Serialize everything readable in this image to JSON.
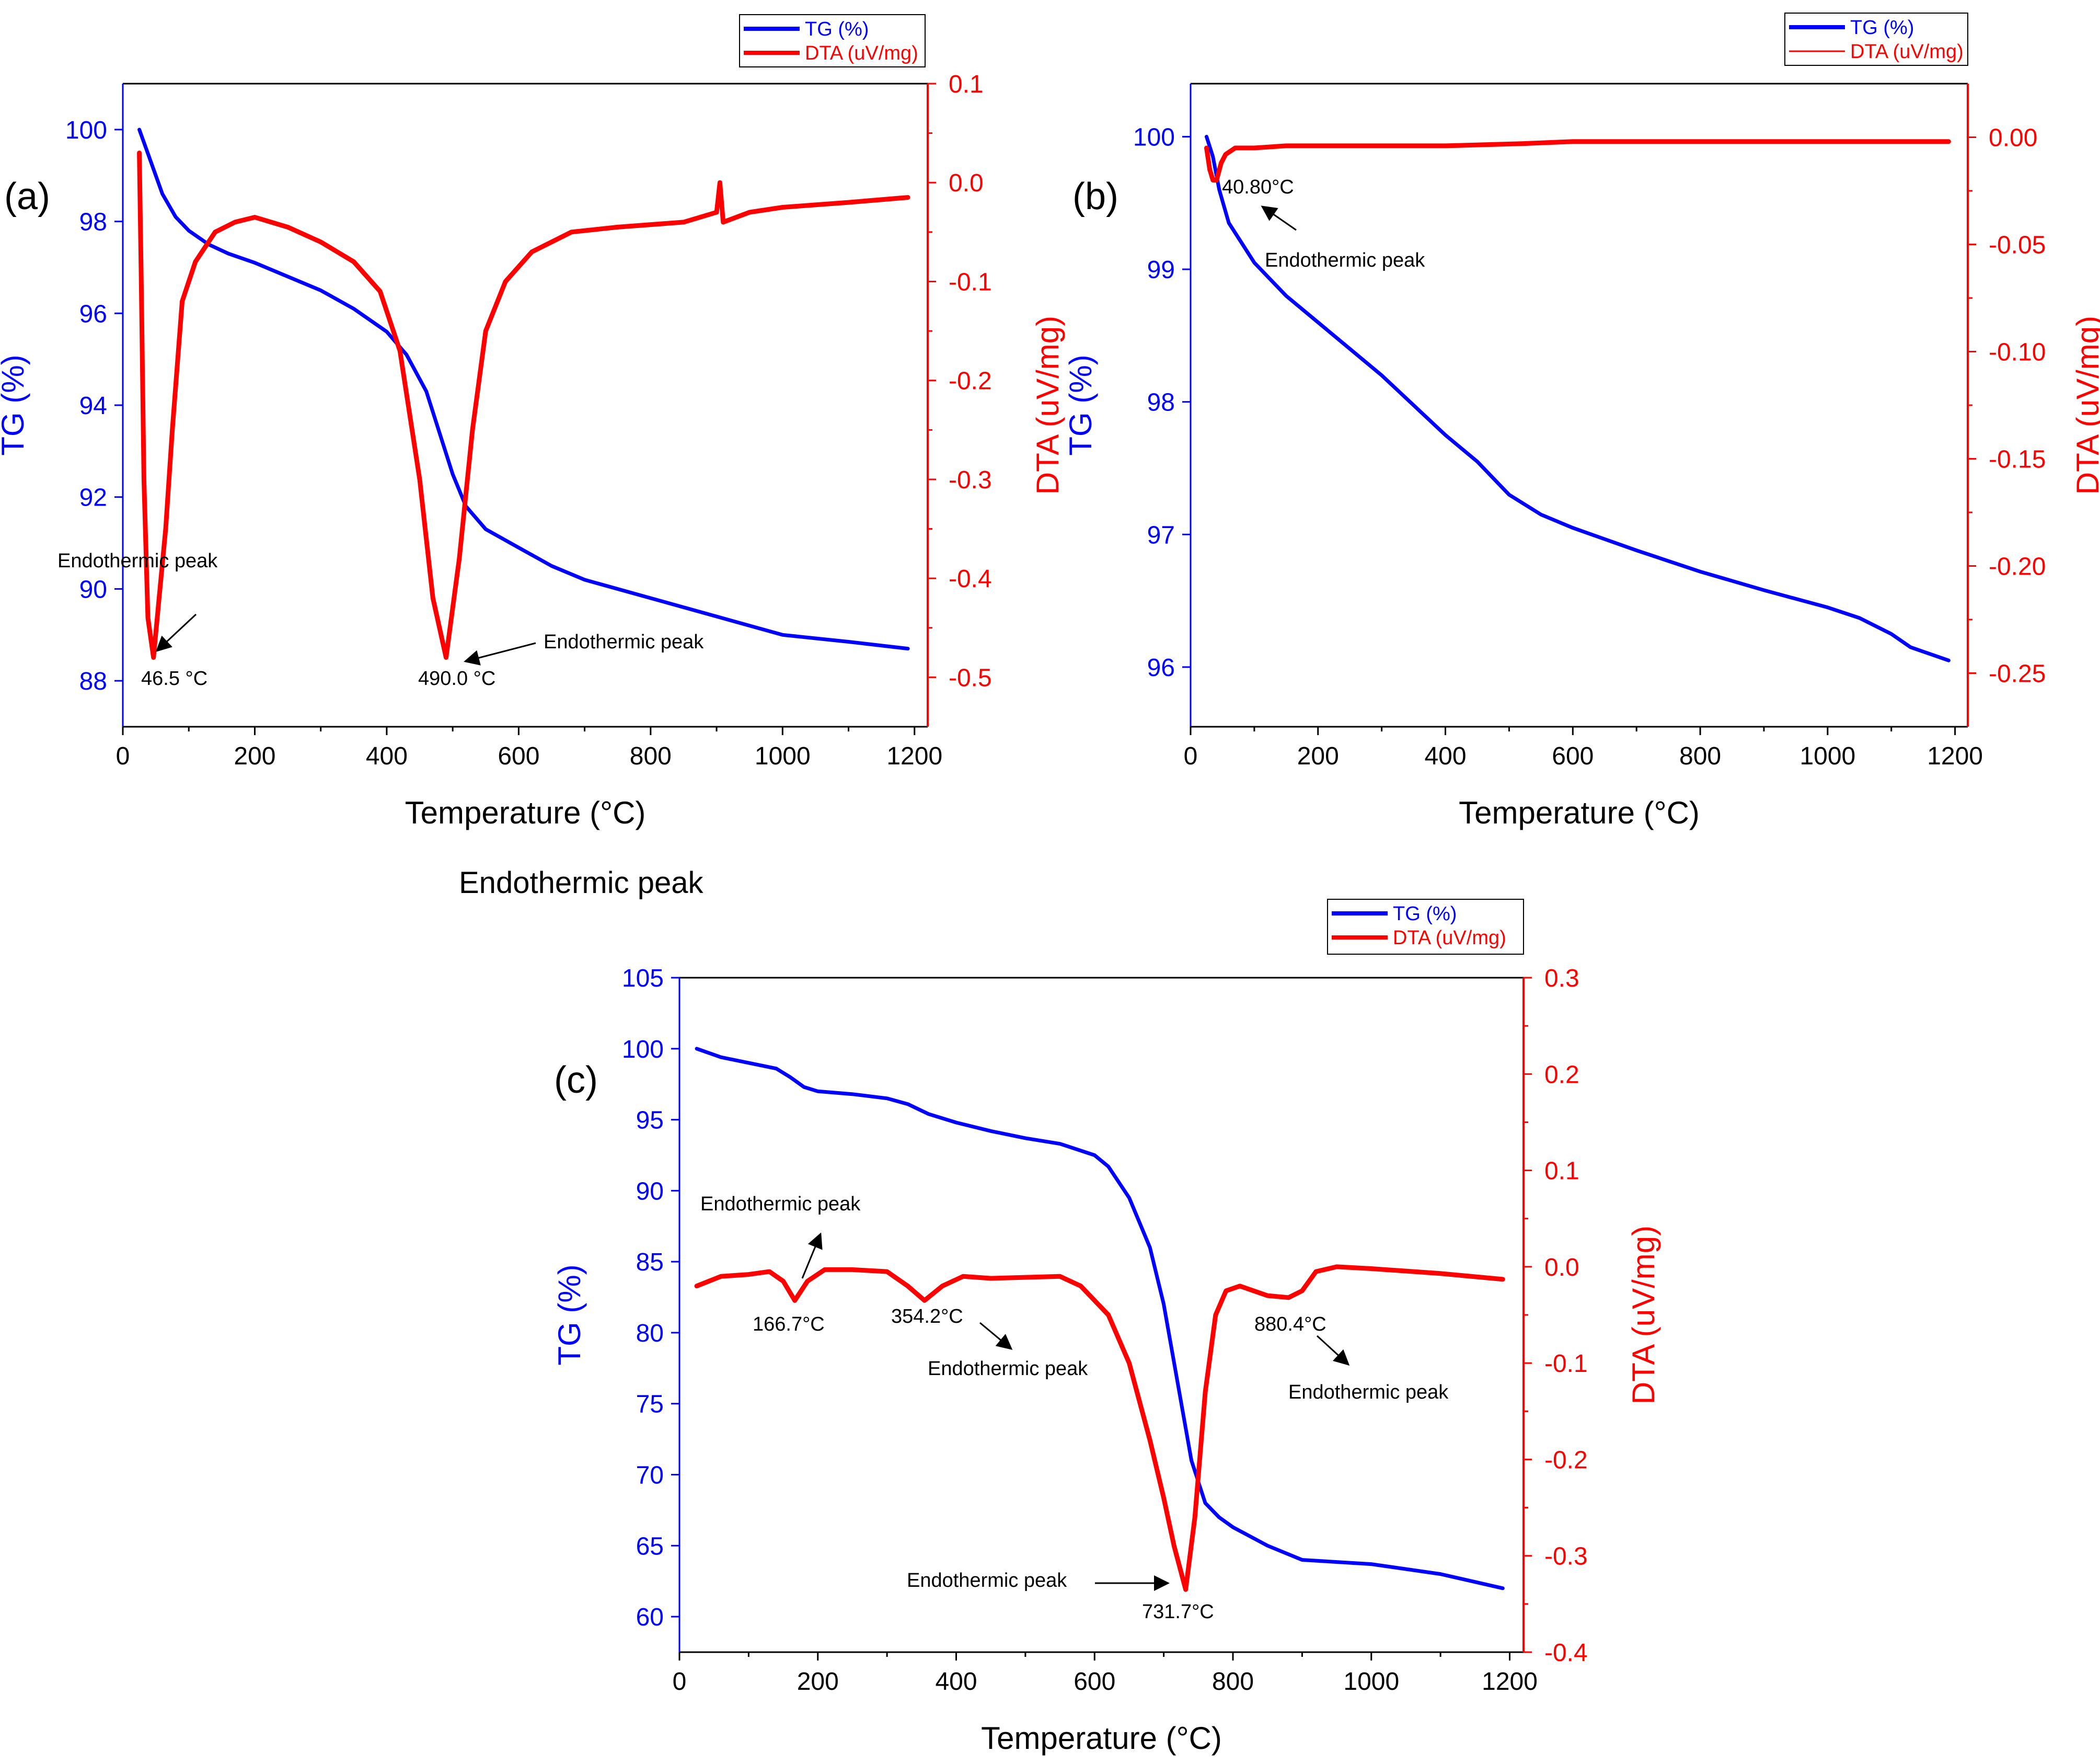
{
  "stray_text": "Endothermic peak",
  "colors": {
    "tg": "#0000ff",
    "dta": "#ff0000",
    "axis": "#000000"
  },
  "chart_data": [
    {
      "panel": "(a)",
      "type": "line",
      "xlabel": "Temperature (°C)",
      "ylabel_left": "TG (%)",
      "ylabel_right": "DTA (uV/mg)",
      "xlim": [
        0,
        1220
      ],
      "x_ticks": [
        0,
        200,
        400,
        600,
        800,
        1000,
        1200
      ],
      "ylim_left": [
        87,
        101
      ],
      "y_ticks_left": [
        88,
        90,
        92,
        94,
        96,
        98,
        100
      ],
      "ylim_right": [
        -0.55,
        0.1
      ],
      "y_ticks_right": [
        -0.5,
        -0.4,
        -0.3,
        -0.2,
        -0.1,
        0.0,
        0.1
      ],
      "legend": [
        "TG (%)",
        "DTA (uV/mg)"
      ],
      "legend_position": "top-right",
      "series": [
        {
          "name": "TG (%)",
          "axis": "left",
          "x": [
            25,
            40,
            60,
            80,
            100,
            130,
            160,
            200,
            250,
            300,
            350,
            400,
            430,
            460,
            480,
            500,
            520,
            550,
            600,
            650,
            700,
            800,
            900,
            1000,
            1100,
            1190
          ],
          "y": [
            100,
            99.4,
            98.6,
            98.1,
            97.8,
            97.5,
            97.3,
            97.1,
            96.8,
            96.5,
            96.1,
            95.6,
            95.1,
            94.3,
            93.4,
            92.5,
            91.8,
            91.3,
            90.9,
            90.5,
            90.2,
            89.8,
            89.4,
            89.0,
            88.85,
            88.7
          ]
        },
        {
          "name": "DTA (uV/mg)",
          "axis": "right",
          "x": [
            25,
            28,
            32,
            38,
            46.5,
            55,
            65,
            75,
            90,
            110,
            140,
            170,
            200,
            250,
            300,
            350,
            390,
            420,
            450,
            470,
            490,
            510,
            530,
            550,
            580,
            620,
            680,
            750,
            850,
            900,
            905,
            910,
            950,
            1000,
            1100,
            1190
          ],
          "y": [
            0.03,
            -0.1,
            -0.3,
            -0.44,
            -0.48,
            -0.42,
            -0.35,
            -0.25,
            -0.12,
            -0.08,
            -0.05,
            -0.04,
            -0.035,
            -0.045,
            -0.06,
            -0.08,
            -0.11,
            -0.17,
            -0.3,
            -0.42,
            -0.48,
            -0.38,
            -0.25,
            -0.15,
            -0.1,
            -0.07,
            -0.05,
            -0.045,
            -0.04,
            -0.03,
            0.0,
            -0.04,
            -0.03,
            -0.025,
            -0.02,
            -0.015
          ]
        }
      ],
      "annotations": [
        {
          "text": "Endothermic peak",
          "at": [
            46.5,
            -0.48
          ]
        },
        {
          "text": "46.5 °C",
          "at": [
            46.5,
            -0.48
          ]
        },
        {
          "text": "Endothermic peak",
          "at": [
            490,
            -0.48
          ]
        },
        {
          "text": "490.0 °C",
          "at": [
            490,
            -0.48
          ]
        }
      ]
    },
    {
      "panel": "(b)",
      "type": "line",
      "xlabel": "Temperature (°C)",
      "ylabel_left": "TG (%)",
      "ylabel_right": "DTA (uV/mg)",
      "xlim": [
        0,
        1220
      ],
      "x_ticks": [
        0,
        200,
        400,
        600,
        800,
        1000,
        1200
      ],
      "ylim_left": [
        95.55,
        100.4
      ],
      "y_ticks_left": [
        96,
        97,
        98,
        99,
        100
      ],
      "ylim_right": [
        -0.275,
        0.025
      ],
      "y_ticks_right": [
        -0.25,
        -0.2,
        -0.15,
        -0.1,
        -0.05,
        0.0
      ],
      "y_ticklabels_right": [
        "-0.25",
        "-0.20",
        "-0.15",
        "-0.10",
        "-0.05",
        "0.00"
      ],
      "legend": [
        "TG (%)",
        "DTA (uV/mg)"
      ],
      "legend_position": "top-right",
      "series": [
        {
          "name": "TG (%)",
          "axis": "left",
          "x": [
            25,
            35,
            45,
            60,
            80,
            100,
            150,
            200,
            300,
            400,
            450,
            500,
            550,
            600,
            700,
            800,
            900,
            1000,
            1050,
            1100,
            1130,
            1190
          ],
          "y": [
            100,
            99.85,
            99.6,
            99.35,
            99.2,
            99.05,
            98.8,
            98.6,
            98.2,
            97.75,
            97.55,
            97.3,
            97.15,
            97.05,
            96.88,
            96.72,
            96.58,
            96.45,
            96.37,
            96.25,
            96.15,
            96.05
          ]
        },
        {
          "name": "DTA (uV/mg)",
          "axis": "right",
          "x": [
            25,
            30,
            35,
            40.8,
            48,
            55,
            70,
            100,
            150,
            250,
            400,
            520,
            600,
            700,
            800,
            900,
            1000,
            1100,
            1190
          ],
          "y": [
            -0.005,
            -0.015,
            -0.02,
            -0.02,
            -0.012,
            -0.008,
            -0.005,
            -0.005,
            -0.004,
            -0.004,
            -0.004,
            -0.003,
            -0.002,
            -0.002,
            -0.002,
            -0.002,
            -0.002,
            -0.002,
            -0.002
          ]
        }
      ],
      "annotations": [
        {
          "text": "40.80°C",
          "at": [
            40.8,
            -0.02
          ]
        },
        {
          "text": "Endothermic peak",
          "at": [
            40.8,
            -0.02
          ]
        }
      ]
    },
    {
      "panel": "(c)",
      "type": "line",
      "xlabel": "Temperature (°C)",
      "ylabel_left": "TG (%)",
      "ylabel_right": "DTA (uV/mg)",
      "xlim": [
        0,
        1220
      ],
      "x_ticks": [
        0,
        200,
        400,
        600,
        800,
        1000,
        1200
      ],
      "ylim_left": [
        57.5,
        105
      ],
      "y_ticks_left": [
        60,
        65,
        70,
        75,
        80,
        85,
        90,
        95,
        100,
        105
      ],
      "ylim_right": [
        -0.4,
        0.3
      ],
      "y_ticks_right": [
        -0.4,
        -0.3,
        -0.2,
        -0.1,
        0.0,
        0.1,
        0.2,
        0.3
      ],
      "legend": [
        "TG (%)",
        "DTA (uV/mg)"
      ],
      "legend_position": "top-right",
      "series": [
        {
          "name": "TG (%)",
          "axis": "left",
          "x": [
            25,
            60,
            100,
            140,
            160,
            180,
            200,
            250,
            300,
            330,
            360,
            400,
            450,
            500,
            550,
            600,
            620,
            650,
            680,
            700,
            720,
            740,
            760,
            780,
            800,
            850,
            900,
            1000,
            1100,
            1190
          ],
          "y": [
            100,
            99.4,
            99.0,
            98.6,
            98.0,
            97.3,
            97.0,
            96.8,
            96.5,
            96.1,
            95.4,
            94.8,
            94.2,
            93.7,
            93.3,
            92.5,
            91.7,
            89.5,
            86.0,
            82.0,
            76.5,
            71.0,
            68.0,
            67.0,
            66.3,
            65.0,
            64.0,
            63.7,
            63.0,
            62.0
          ]
        },
        {
          "name": "DTA (uV/mg)",
          "axis": "right",
          "x": [
            25,
            60,
            100,
            130,
            150,
            166.7,
            185,
            210,
            250,
            300,
            330,
            354.2,
            380,
            410,
            450,
            550,
            580,
            620,
            650,
            680,
            700,
            715,
            731.7,
            745,
            760,
            775,
            790,
            810,
            850,
            880.4,
            900,
            920,
            950,
            1000,
            1100,
            1190
          ],
          "y": [
            -0.02,
            -0.01,
            -0.008,
            -0.005,
            -0.015,
            -0.035,
            -0.015,
            -0.003,
            -0.003,
            -0.005,
            -0.02,
            -0.035,
            -0.02,
            -0.01,
            -0.012,
            -0.01,
            -0.02,
            -0.05,
            -0.1,
            -0.18,
            -0.24,
            -0.29,
            -0.335,
            -0.26,
            -0.13,
            -0.05,
            -0.025,
            -0.02,
            -0.03,
            -0.032,
            -0.025,
            -0.005,
            0.0,
            -0.002,
            -0.007,
            -0.013
          ]
        }
      ],
      "annotations": [
        {
          "text": "Endothermic peak",
          "at": [
            166.7,
            -0.035
          ]
        },
        {
          "text": "166.7°C",
          "at": [
            166.7,
            -0.035
          ]
        },
        {
          "text": "354.2°C",
          "at": [
            354.2,
            -0.035
          ]
        },
        {
          "text": "Endothermic peak",
          "at": [
            354.2,
            -0.035
          ]
        },
        {
          "text": "880.4°C",
          "at": [
            880.4,
            -0.032
          ]
        },
        {
          "text": "Endothermic peak",
          "at": [
            880.4,
            -0.032
          ]
        },
        {
          "text": "Endothermic peak",
          "at": [
            731.7,
            -0.335
          ]
        },
        {
          "text": "731.7°C",
          "at": [
            731.7,
            -0.335
          ]
        }
      ]
    }
  ]
}
